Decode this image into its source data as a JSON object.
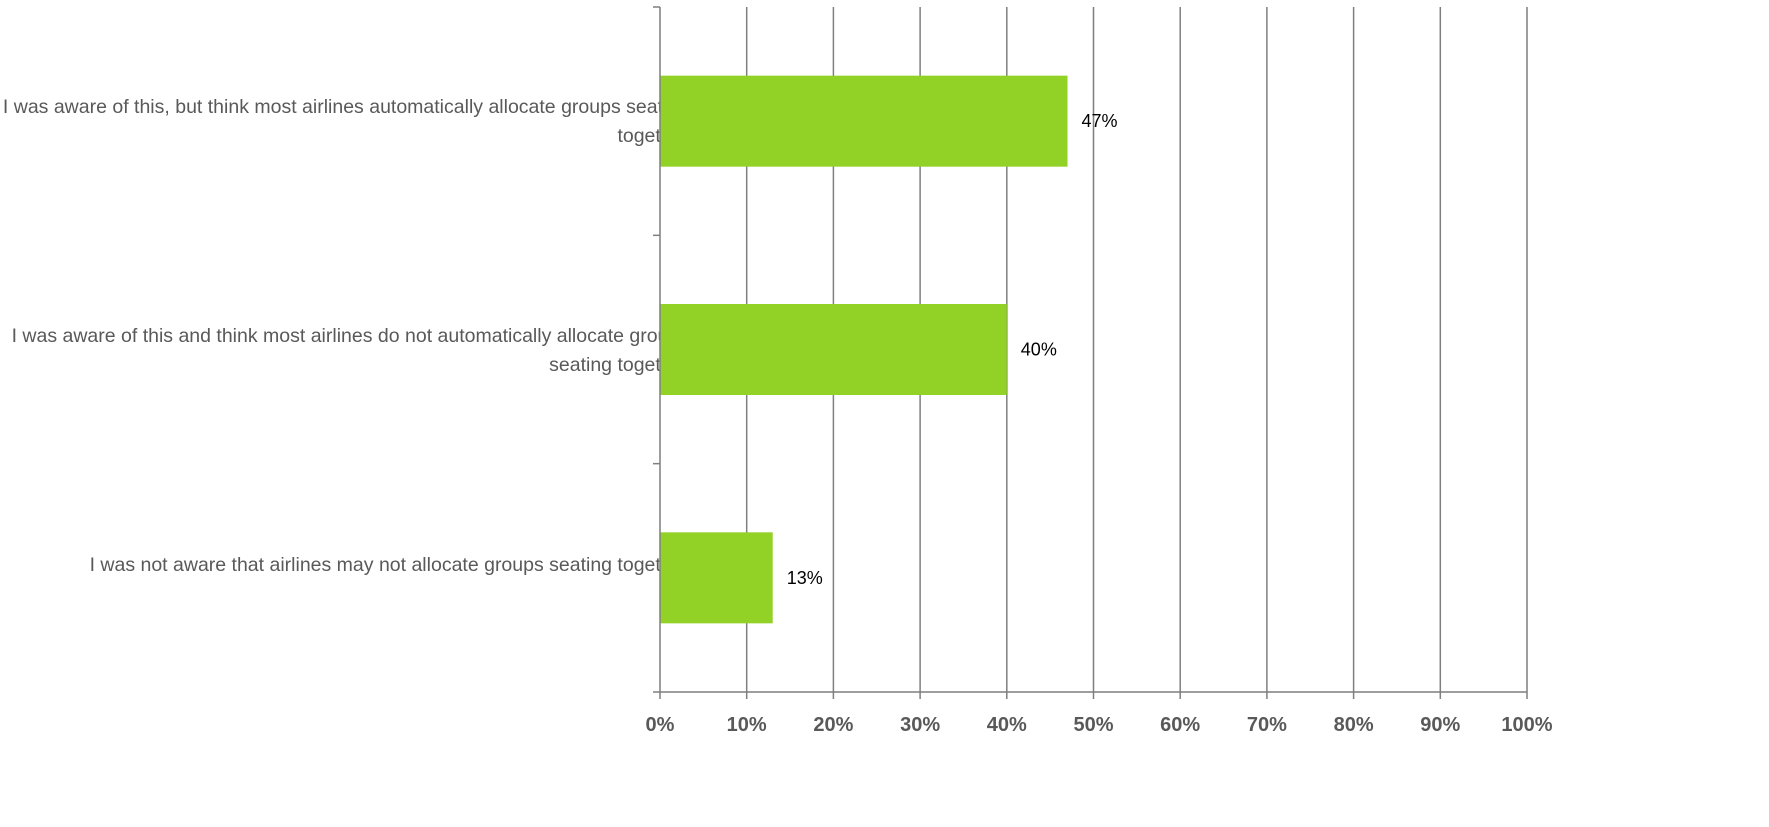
{
  "chart_data": {
    "type": "bar",
    "orientation": "horizontal",
    "categories": [
      "I was aware of this, but think most airlines automatically allocate groups seating together",
      "I was aware of this and think most airlines do not automatically allocate groups seating together",
      "I was not aware that airlines may not allocate groups seating together"
    ],
    "values": [
      47,
      40,
      13
    ],
    "data_labels": [
      "47%",
      "40%",
      "13%"
    ],
    "xlim": [
      0,
      100
    ],
    "x_ticks": [
      "0%",
      "10%",
      "20%",
      "30%",
      "40%",
      "50%",
      "60%",
      "70%",
      "80%",
      "90%",
      "100%"
    ],
    "title": "",
    "xlabel": "",
    "ylabel": "",
    "grid": true,
    "legend": "none",
    "colors": {
      "bar": "#92D125",
      "grid": "#7f7f7f",
      "axis_text": "#595959",
      "data_label": "#000000"
    }
  }
}
